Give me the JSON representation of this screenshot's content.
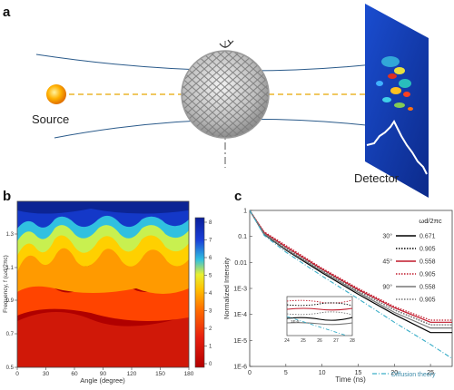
{
  "panel_a": {
    "label": "a",
    "source_label": "Source",
    "detector_label": "Detector"
  },
  "panel_b": {
    "label": "b",
    "ylabel": "Frequency, f (ωd/2πc)",
    "xlabel": "Angle (degree)",
    "xticks": [
      "0",
      "30",
      "60",
      "90",
      "120",
      "150",
      "180"
    ],
    "yticks": [
      "1.3",
      "1.1",
      "0.9",
      "0.7",
      "0.5"
    ],
    "colorbar_ticks": [
      "8",
      "7",
      "6",
      "5",
      "4",
      "3",
      "2",
      "1",
      "0"
    ]
  },
  "panel_c": {
    "label": "c",
    "ylabel": "Normalized Intensity",
    "xlabel": "Time (ns)",
    "yticks": [
      "1",
      "0.1",
      "0.01",
      "1E-3",
      "1E-4",
      "1E-5",
      "1E-6"
    ],
    "xticks": [
      "0",
      "5",
      "10",
      "15",
      "20",
      "25"
    ],
    "legend_header": "ωd/2πc",
    "legend": [
      {
        "angle": "30°",
        "value": "0.671",
        "style": "solid",
        "color": "#000000"
      },
      {
        "angle": "",
        "value": "0.905",
        "style": "dotted",
        "color": "#000000"
      },
      {
        "angle": "45°",
        "value": "0.558",
        "style": "solid",
        "color": "#c0182a"
      },
      {
        "angle": "",
        "value": "0.905",
        "style": "dotted",
        "color": "#c0182a"
      },
      {
        "angle": "90°",
        "value": "0.558",
        "style": "solid",
        "color": "#777777"
      },
      {
        "angle": "",
        "value": "0.905",
        "style": "dotted",
        "color": "#777777"
      }
    ],
    "diffusion_label": "Diffusion theory",
    "inset": {
      "xticks": [
        "24",
        "25",
        "26",
        "27",
        "28"
      ],
      "ytick": "1E-5"
    }
  },
  "chart_data": [
    {
      "type": "heatmap",
      "xlabel": "Angle (degree)",
      "ylabel": "Frequency, f (ωd/2πc)",
      "xlim": [
        0,
        180
      ],
      "ylim": [
        0.5,
        1.4
      ],
      "colorbar_range": [
        0,
        8.5
      ]
    },
    {
      "type": "line",
      "xlabel": "Time (ns)",
      "ylabel": "Normalized Intensity",
      "xlim": [
        0,
        28
      ],
      "ylim": [
        1e-06,
        1
      ],
      "yscale": "log",
      "x": [
        0,
        2,
        5,
        10,
        15,
        20,
        25,
        28
      ],
      "series": [
        {
          "name": "30° 0.671",
          "values": [
            1,
            0.12,
            0.03,
            0.004,
            0.0006,
            0.0001,
            2e-05,
            2e-05
          ]
        },
        {
          "name": "30° 0.905",
          "values": [
            1,
            0.13,
            0.035,
            0.005,
            0.0008,
            0.00015,
            4e-05,
            4e-05
          ]
        },
        {
          "name": "45° 0.558",
          "values": [
            1,
            0.14,
            0.04,
            0.0055,
            0.0009,
            0.00018,
            5e-05,
            5e-05
          ]
        },
        {
          "name": "45° 0.905",
          "values": [
            1,
            0.15,
            0.045,
            0.006,
            0.001,
            0.0002,
            6e-05,
            6e-05
          ]
        },
        {
          "name": "90° 0.558",
          "values": [
            1,
            0.125,
            0.032,
            0.0045,
            0.0007,
            0.00012,
            3e-05,
            3e-05
          ]
        },
        {
          "name": "90° 0.905",
          "values": [
            1,
            0.13,
            0.036,
            0.005,
            0.0008,
            0.00015,
            4e-05,
            4e-05
          ]
        },
        {
          "name": "Diffusion theory",
          "values": [
            1,
            0.11,
            0.025,
            0.003,
            0.0004,
            5e-05,
            7e-06,
            2e-06
          ]
        }
      ]
    }
  ]
}
